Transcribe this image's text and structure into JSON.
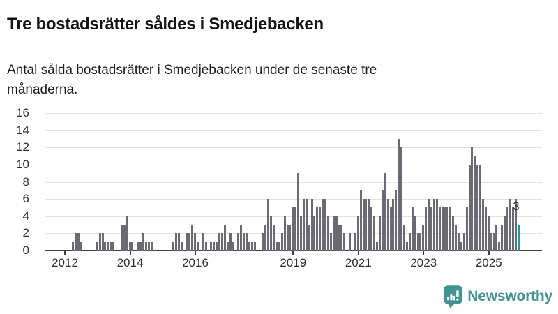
{
  "header": {
    "title": "Tre bostadsrätter såldes i Smedjebacken",
    "subtitle": "Antal sålda bostadsrätter i Smedjebacken under de senaste tre månaderna.",
    "subtitle_line1": "Antal sålda bostadsrätter i Smedjebacken under de senaste tre",
    "subtitle_line2": "månaderna."
  },
  "footer": {
    "brand": "Newsworthy",
    "brand_color": "#439292",
    "logo_icon": "bar-chart-speech-bubble"
  },
  "chart_data": {
    "type": "bar",
    "title": "Tre bostadsrätter såldes i Smedjebacken",
    "subtitle": "Antal sålda bostadsrätter i Smedjebacken under de senaste tre månaderna.",
    "xlabel": "",
    "ylabel": "",
    "ylim": [
      0,
      16
    ],
    "grid": "horizontal",
    "y_ticks": [
      0,
      2,
      4,
      6,
      8,
      10,
      12,
      14,
      16
    ],
    "x_tick_labels": [
      "2012",
      "2014",
      "2016",
      "2019",
      "2021",
      "2023",
      "2025"
    ],
    "frequency": "monthly",
    "start": {
      "year": 2012,
      "month": 1
    },
    "values": [
      0,
      0,
      0,
      1,
      2,
      2,
      1,
      0,
      0,
      0,
      0,
      0,
      1,
      2,
      2,
      1,
      1,
      1,
      1,
      0,
      0,
      3,
      3,
      4,
      1,
      1,
      0,
      1,
      1,
      2,
      1,
      1,
      1,
      0,
      0,
      0,
      0,
      0,
      0,
      0,
      1,
      2,
      2,
      1,
      0,
      2,
      2,
      3,
      2,
      1,
      0,
      2,
      1,
      0,
      1,
      1,
      1,
      2,
      2,
      3,
      1,
      2,
      1,
      0,
      2,
      3,
      2,
      2,
      1,
      1,
      1,
      0,
      0,
      2,
      3,
      6,
      4,
      3,
      1,
      1,
      2,
      4,
      3,
      3,
      5,
      5,
      9,
      4,
      6,
      6,
      3,
      6,
      4,
      5,
      5,
      6,
      6,
      4,
      2,
      4,
      4,
      3,
      3,
      2,
      0,
      2,
      0,
      2,
      4,
      7,
      6,
      6,
      6,
      5,
      4,
      1,
      4,
      7,
      9,
      6,
      5,
      6,
      7,
      13,
      12,
      3,
      1,
      2,
      5,
      4,
      2,
      2,
      3,
      5,
      6,
      5,
      6,
      6,
      5,
      5,
      5,
      5,
      5,
      4,
      3,
      2,
      1,
      2,
      5,
      10,
      12,
      11,
      10,
      10,
      6,
      5,
      4,
      2,
      2,
      3,
      1,
      3,
      4,
      5,
      6,
      5,
      6,
      3
    ],
    "bar_color": "#6b6a72",
    "highlight": {
      "index": 167,
      "value": 3,
      "label": "3",
      "color": "#1a9c9e"
    },
    "axis_color": "#3f3f3f",
    "gridline_color": "#e1e1e1"
  }
}
